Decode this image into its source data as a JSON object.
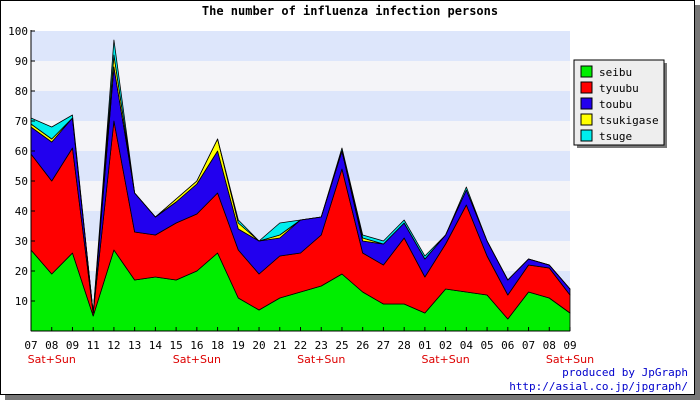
{
  "chart_data": {
    "type": "area",
    "stacked": true,
    "title": "The number of influenza infection persons",
    "xlabel": "",
    "ylabel": "",
    "ylim": [
      0,
      100
    ],
    "yticks": [
      10,
      20,
      30,
      40,
      50,
      60,
      70,
      80,
      90,
      100
    ],
    "grid": "horizontal bands",
    "legend_position": "right",
    "categories": [
      "07",
      "08",
      "09",
      "11",
      "12",
      "13",
      "14",
      "15",
      "16",
      "18",
      "19",
      "20",
      "21",
      "22",
      "23",
      "25",
      "26",
      "27",
      "28",
      "01",
      "02",
      "04",
      "05",
      "06",
      "07",
      "08",
      "09"
    ],
    "weekend_markers": [
      {
        "category_index": 1,
        "label": "Sat+Sun"
      },
      {
        "category_index": 8,
        "label": "Sat+Sun"
      },
      {
        "category_index": 14,
        "label": "Sat+Sun"
      },
      {
        "category_index": 20,
        "label": "Sat+Sun"
      },
      {
        "category_index": 26,
        "label": "Sat+Sun"
      }
    ],
    "series": [
      {
        "name": "seibu",
        "color": "#00ee00",
        "values": [
          27,
          19,
          26,
          5,
          27,
          17,
          18,
          17,
          20,
          26,
          11,
          7,
          11,
          13,
          15,
          19,
          13,
          9,
          9,
          6,
          14,
          13,
          12,
          4,
          13,
          11,
          6
        ]
      },
      {
        "name": "tyuubu",
        "color": "#ff0000",
        "values": [
          32,
          31,
          35,
          1,
          43,
          16,
          14,
          19,
          19,
          20,
          16,
          12,
          14,
          13,
          17,
          35,
          13,
          13,
          22,
          12,
          15,
          29,
          13,
          8,
          9,
          10,
          6
        ]
      },
      {
        "name": "toubu",
        "color": "#2200ee",
        "values": [
          9,
          13,
          10,
          0,
          18,
          13,
          6,
          7,
          10,
          14,
          7,
          11,
          6,
          11,
          6,
          6,
          4,
          7,
          5,
          6,
          3,
          5,
          5,
          5,
          2,
          1,
          2
        ]
      },
      {
        "name": "tsukigase",
        "color": "#ffff00",
        "values": [
          1,
          1,
          0,
          0,
          4,
          0,
          0,
          1,
          1,
          4,
          2,
          0,
          1,
          0,
          0,
          0,
          1,
          0,
          0,
          0,
          0,
          0,
          0,
          0,
          0,
          0,
          0
        ]
      },
      {
        "name": "tsuge",
        "color": "#00eeee",
        "values": [
          2,
          4,
          1,
          0,
          5,
          0,
          0,
          0,
          0,
          0,
          1,
          0,
          4,
          0,
          0,
          1,
          1,
          1,
          1,
          1,
          0,
          1,
          0,
          0,
          0,
          0,
          0
        ]
      }
    ]
  },
  "footer": {
    "line1": "produced by JpGraph",
    "line2": "http://asial.co.jp/jpgraph/"
  }
}
